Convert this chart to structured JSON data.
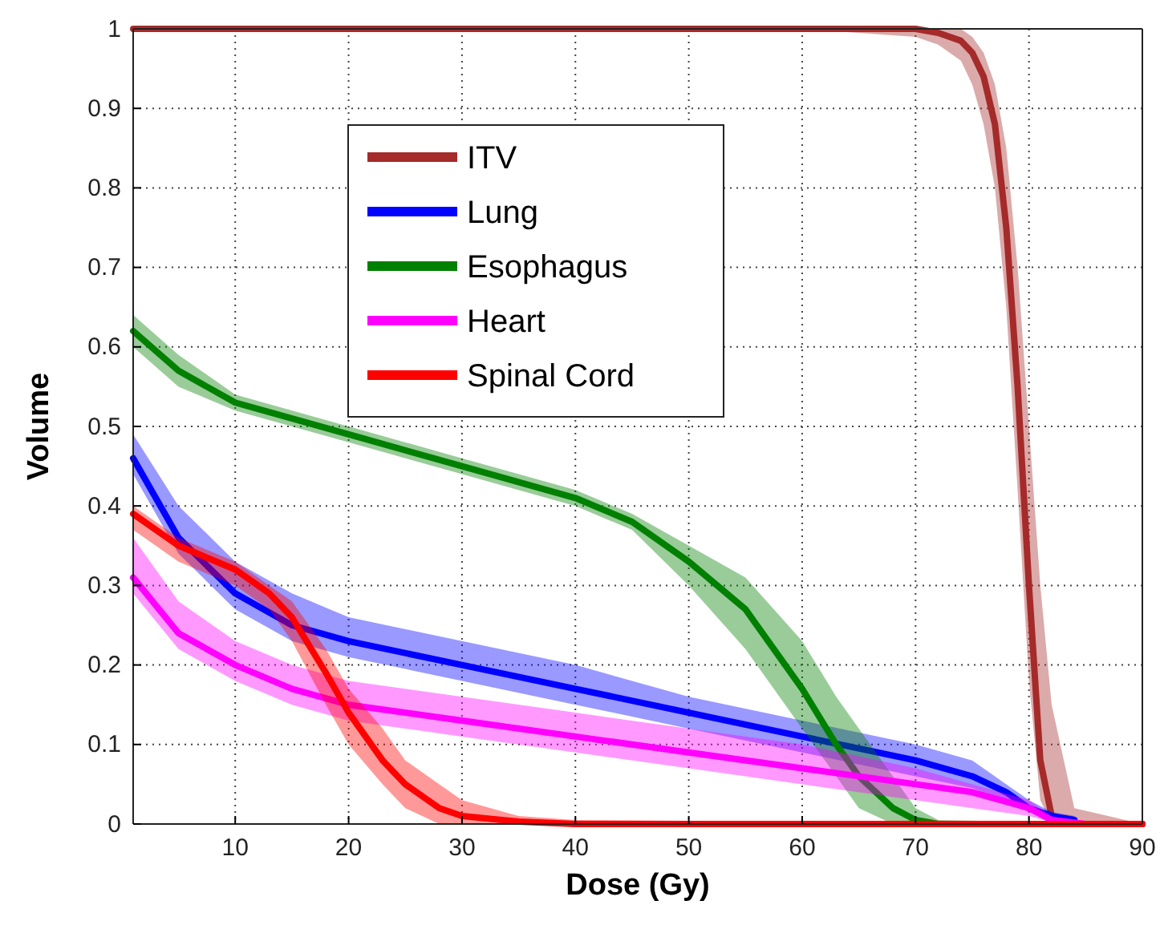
{
  "chart_data": {
    "type": "line",
    "xlabel": "Dose (Gy)",
    "ylabel": "Volume",
    "xlim": [
      1,
      90
    ],
    "ylim": [
      0,
      1
    ],
    "xticks": [
      10,
      20,
      30,
      40,
      50,
      60,
      70,
      80,
      90
    ],
    "yticks": [
      0,
      0.1,
      0.2,
      0.3,
      0.4,
      0.5,
      0.6,
      0.7,
      0.8,
      0.9,
      1
    ],
    "grid": true,
    "legend": "top left",
    "line_style": "solid",
    "marker": "none",
    "series": [
      {
        "name": "ITV",
        "color": "#a52a2a",
        "x": [
          1,
          60,
          70,
          72,
          74,
          75,
          76,
          77,
          78,
          79,
          80,
          81,
          82,
          84,
          90
        ],
        "values": [
          1,
          1,
          1,
          0.995,
          0.985,
          0.97,
          0.94,
          0.88,
          0.75,
          0.55,
          0.3,
          0.08,
          0.01,
          0,
          0
        ],
        "lower": [
          1,
          1,
          0.99,
          0.98,
          0.96,
          0.93,
          0.88,
          0.8,
          0.65,
          0.42,
          0.18,
          0.03,
          0,
          0,
          0
        ],
        "upper": [
          1,
          1,
          1,
          1,
          1,
          0.99,
          0.97,
          0.93,
          0.85,
          0.7,
          0.5,
          0.3,
          0.15,
          0.02,
          0
        ]
      },
      {
        "name": "Lung",
        "color": "#0000ff",
        "x": [
          1,
          5,
          10,
          15,
          20,
          30,
          40,
          50,
          60,
          70,
          75,
          78,
          80,
          82,
          84
        ],
        "values": [
          0.46,
          0.36,
          0.29,
          0.25,
          0.23,
          0.2,
          0.17,
          0.14,
          0.11,
          0.08,
          0.06,
          0.04,
          0.02,
          0.01,
          0.005
        ],
        "lower": [
          0.44,
          0.34,
          0.27,
          0.23,
          0.21,
          0.18,
          0.15,
          0.12,
          0.09,
          0.06,
          0.045,
          0.03,
          0.015,
          0.005,
          0.003
        ],
        "upper": [
          0.49,
          0.4,
          0.33,
          0.29,
          0.26,
          0.23,
          0.2,
          0.16,
          0.13,
          0.1,
          0.08,
          0.05,
          0.03,
          0.015,
          0.01
        ]
      },
      {
        "name": "Esophagus",
        "color": "#008000",
        "x": [
          1,
          5,
          10,
          20,
          30,
          40,
          45,
          50,
          55,
          60,
          63,
          65,
          68,
          70,
          72,
          90
        ],
        "values": [
          0.62,
          0.57,
          0.53,
          0.49,
          0.45,
          0.41,
          0.38,
          0.33,
          0.27,
          0.17,
          0.1,
          0.06,
          0.02,
          0.005,
          0,
          0
        ],
        "lower": [
          0.6,
          0.55,
          0.52,
          0.48,
          0.44,
          0.4,
          0.37,
          0.3,
          0.22,
          0.12,
          0.06,
          0.02,
          0,
          0,
          0,
          0
        ],
        "upper": [
          0.64,
          0.59,
          0.54,
          0.5,
          0.46,
          0.42,
          0.39,
          0.35,
          0.31,
          0.23,
          0.16,
          0.12,
          0.06,
          0.02,
          0.005,
          0
        ]
      },
      {
        "name": "Heart",
        "color": "#ff00ff",
        "x": [
          1,
          5,
          10,
          15,
          20,
          30,
          40,
          50,
          60,
          70,
          75,
          80,
          82,
          85,
          90
        ],
        "values": [
          0.31,
          0.24,
          0.2,
          0.17,
          0.15,
          0.13,
          0.11,
          0.09,
          0.07,
          0.05,
          0.04,
          0.02,
          0.005,
          0,
          0
        ],
        "lower": [
          0.29,
          0.22,
          0.18,
          0.15,
          0.13,
          0.11,
          0.09,
          0.07,
          0.05,
          0.03,
          0.02,
          0.01,
          0.002,
          0,
          0
        ],
        "upper": [
          0.36,
          0.28,
          0.23,
          0.2,
          0.18,
          0.16,
          0.14,
          0.12,
          0.1,
          0.07,
          0.05,
          0.03,
          0.01,
          0,
          0
        ]
      },
      {
        "name": "Spinal Cord",
        "color": "#ff0000",
        "x": [
          1,
          5,
          10,
          13,
          15,
          18,
          20,
          23,
          25,
          28,
          30,
          35,
          40,
          90
        ],
        "values": [
          0.39,
          0.35,
          0.32,
          0.29,
          0.26,
          0.19,
          0.14,
          0.08,
          0.05,
          0.02,
          0.01,
          0.003,
          0,
          0
        ],
        "lower": [
          0.37,
          0.33,
          0.3,
          0.27,
          0.23,
          0.15,
          0.1,
          0.05,
          0.02,
          0,
          0,
          0,
          0,
          0
        ],
        "upper": [
          0.4,
          0.36,
          0.33,
          0.3,
          0.28,
          0.22,
          0.17,
          0.12,
          0.08,
          0.05,
          0.03,
          0.01,
          0.005,
          0
        ]
      }
    ]
  }
}
